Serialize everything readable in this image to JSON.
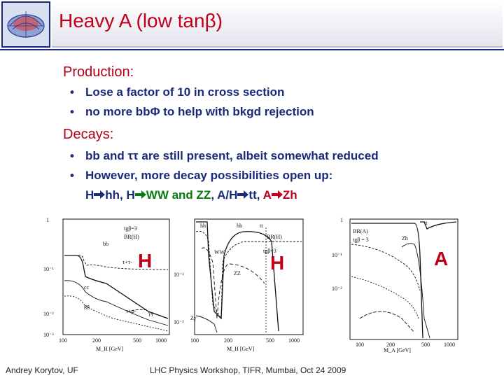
{
  "title": {
    "prefix": "Heavy A (low tan",
    "beta": "β",
    "suffix": ")"
  },
  "production": {
    "heading": "Production:",
    "bullets": [
      "Lose a factor of 10 in cross section",
      {
        "pre": "no more bb",
        "phi": "Φ",
        "post": " to help with bkgd rejection"
      }
    ]
  },
  "decays": {
    "heading": "Decays:",
    "bullet1": {
      "pre": "bb and ",
      "tautau": "ττ",
      "post": " are still present, albeit somewhat reduced"
    },
    "bullet2": "However, more decay possibilities open up:",
    "line3": {
      "a": "H",
      "a2": "hh, ",
      "b": "H",
      "b2": "WW and ",
      "zz": "ZZ",
      "c": ", A/H",
      "c2": "tt, ",
      "d": "A",
      "d2": "Zh"
    }
  },
  "plots": [
    {
      "mark": "H",
      "labels": [
        "tgβ=3",
        "BR(H)",
        "bb",
        "τ+τ-",
        "gg",
        "cc",
        "γγ",
        "τ+μ-"
      ],
      "yticks": [
        "1",
        "10⁻¹",
        "10⁻²",
        "10⁻³"
      ],
      "xticks": [
        "100",
        "200",
        "500",
        "1000"
      ],
      "xlabel": "M_H [GeV]"
    },
    {
      "mark": "H",
      "labels": [
        "hh",
        "hh",
        "tt",
        "BR(H)",
        "tgβ=3",
        "WW",
        "ZZ",
        "Zγ"
      ],
      "yticks": [
        "10⁻¹",
        "10⁻²"
      ],
      "xticks": [
        "100",
        "200",
        "500",
        "1000"
      ],
      "xlabel": "M_H [GeV]"
    },
    {
      "mark": "A",
      "labels": [
        "BR(A)",
        "tgβ = 3",
        "tt",
        "Zh"
      ],
      "yticks": [
        "1",
        "10⁻¹",
        "10⁻²"
      ],
      "xticks": [
        "100",
        "200",
        "500",
        "1000"
      ],
      "xlabel": "M_A [GeV]"
    }
  ],
  "footer": {
    "left": "Andrey Korytov, UF",
    "center": "LHC Physics Workshop, TIFR, Mumbai, Oct 24 2009"
  },
  "colors": {
    "title": "#c0001a",
    "bullets": "#1a2a7a",
    "highlight_red": "#c0001a",
    "highlight_green": "#0a7a0a"
  }
}
